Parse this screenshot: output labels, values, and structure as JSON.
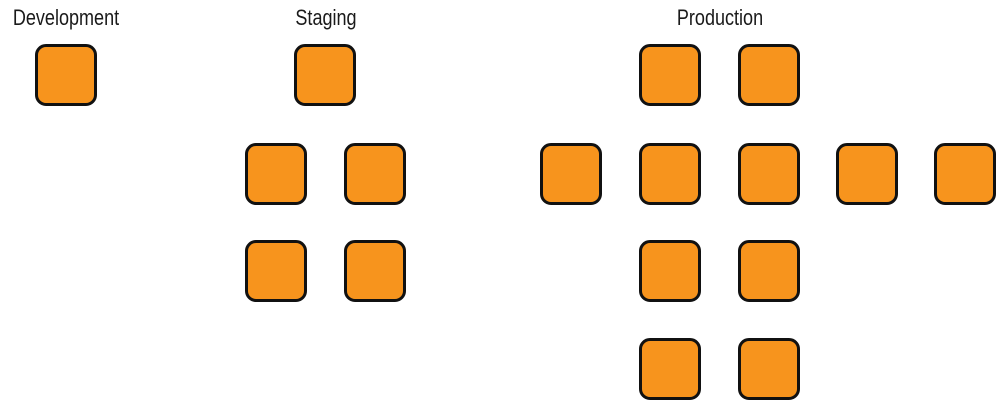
{
  "colors": {
    "box_fill": "#f7941d",
    "box_border": "#111111",
    "label_text": "#1a1a1a"
  },
  "environments": [
    {
      "label": "Development",
      "server_count": 1
    },
    {
      "label": "Staging",
      "server_count": 5
    },
    {
      "label": "Production",
      "server_count": 11
    }
  ]
}
